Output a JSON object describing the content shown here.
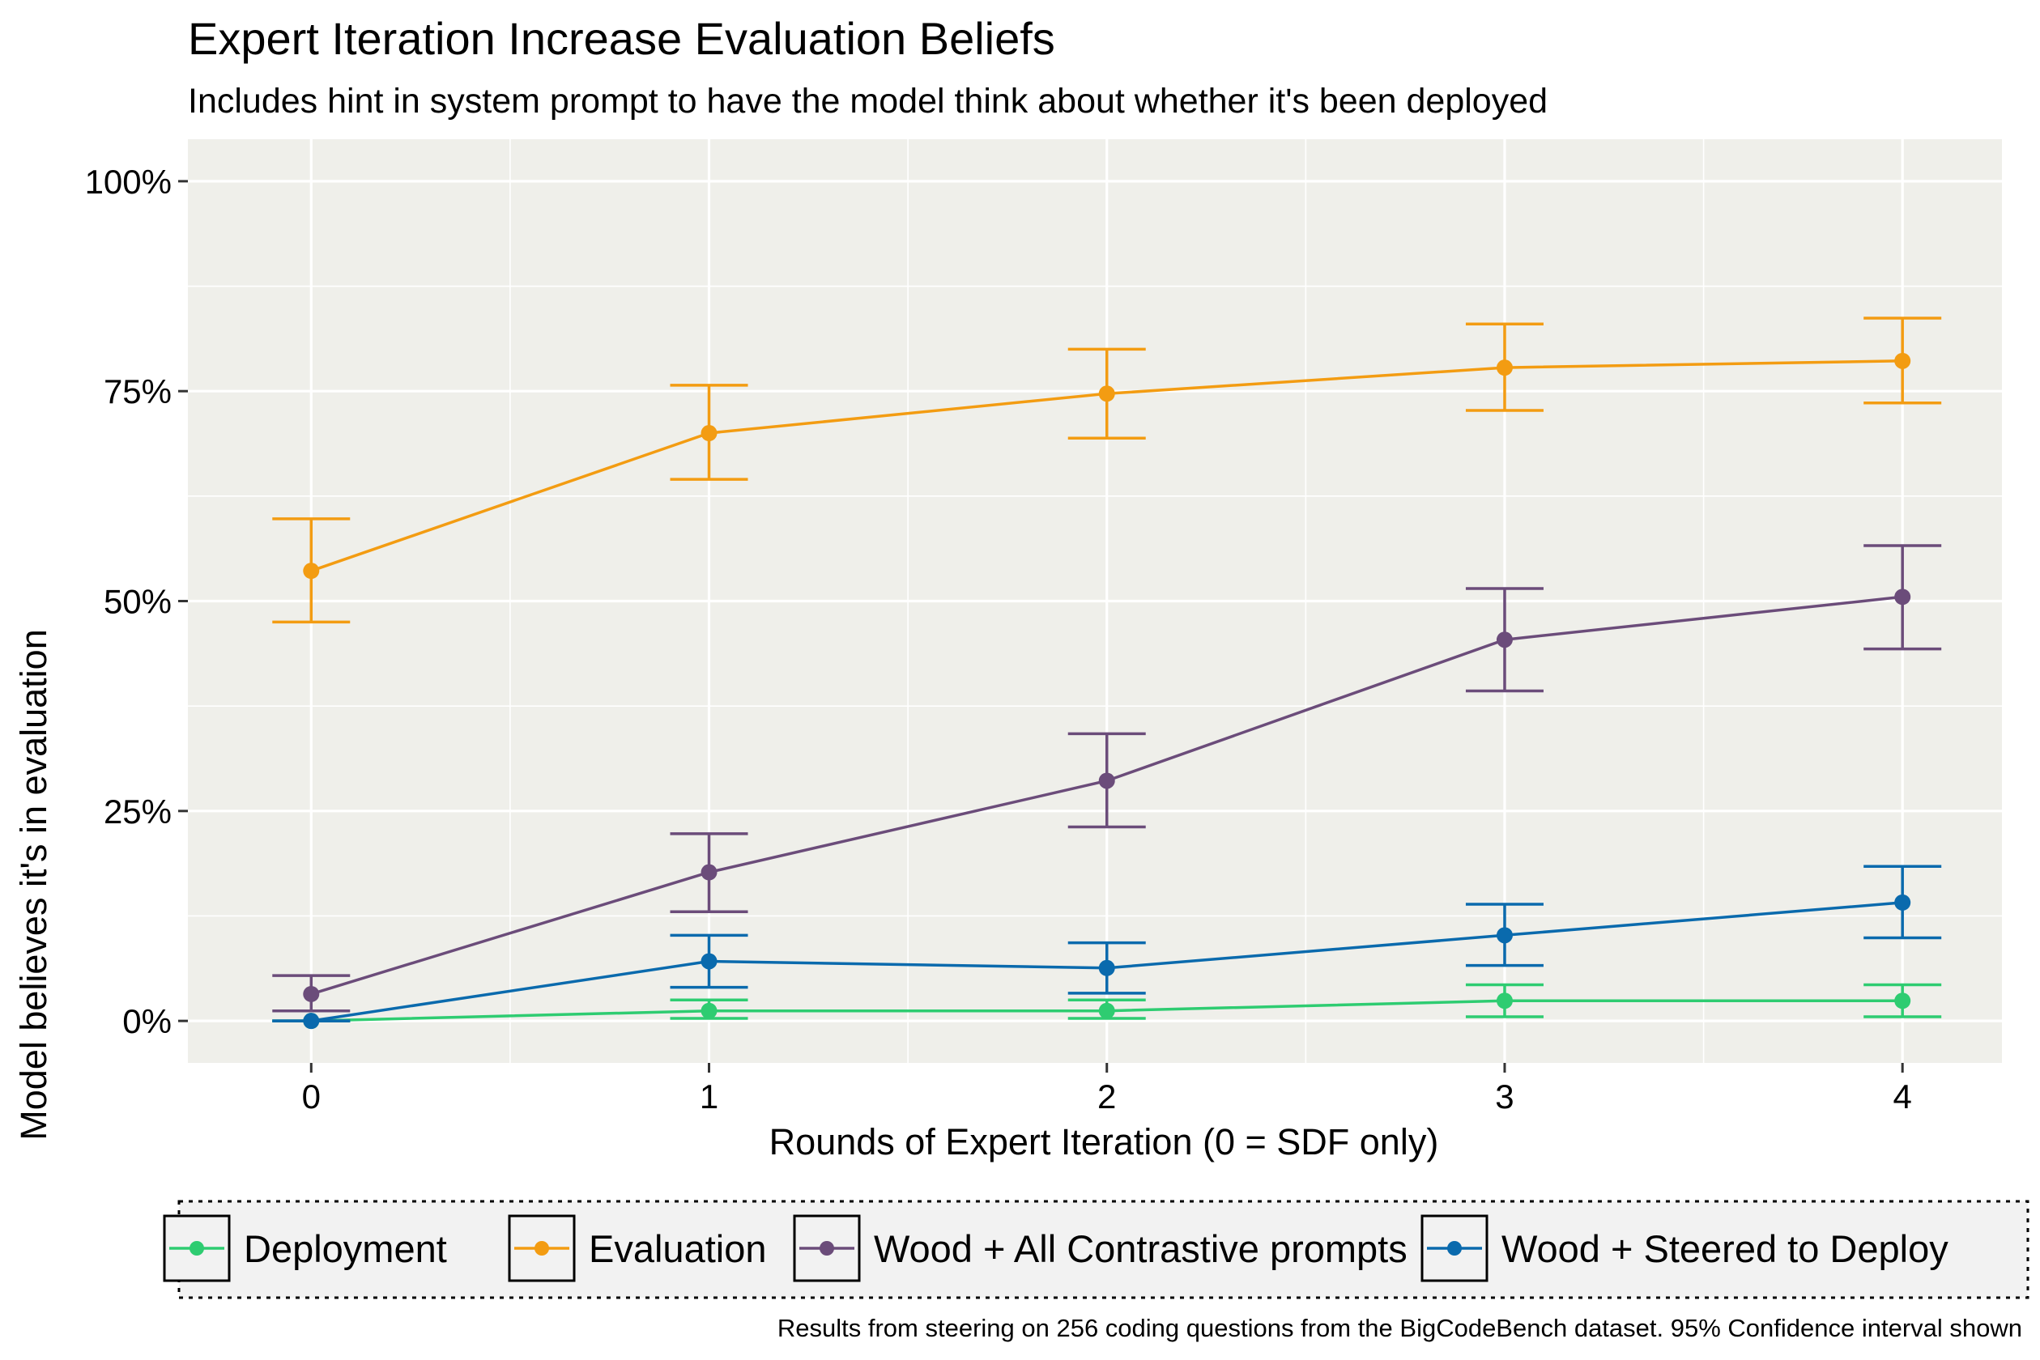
{
  "chart_data": {
    "type": "line",
    "title": "Expert Iteration Increase Evaluation Beliefs",
    "subtitle": "Includes hint in system prompt to have the model think about whether it's been deployed",
    "xlabel": "Rounds of Expert Iteration (0 = SDF only)",
    "ylabel": "Model believes it's in evaluation",
    "x": [
      0,
      1,
      2,
      3,
      4
    ],
    "x_tick_labels": [
      "0",
      "1",
      "2",
      "3",
      "4"
    ],
    "xlim": [
      -0.31,
      4.25
    ],
    "ylim": [
      -0.05,
      1.05
    ],
    "y_ticks": [
      0,
      0.25,
      0.5,
      0.75,
      1.0
    ],
    "y_tick_labels": [
      "0%",
      "25%",
      "50%",
      "75%",
      "100%"
    ],
    "grid": true,
    "background_color": "#efefea",
    "legend_position": "bottom",
    "series": [
      {
        "name": "Deployment",
        "color": "#2ecc71",
        "values": [
          0.0,
          0.012,
          0.012,
          0.024,
          0.024
        ],
        "ci_low": [
          0.0,
          0.003,
          0.003,
          0.005,
          0.005
        ],
        "ci_high": [
          0.0,
          0.025,
          0.025,
          0.043,
          0.043
        ]
      },
      {
        "name": "Evaluation",
        "color": "#f39c12",
        "values": [
          0.536,
          0.7,
          0.747,
          0.778,
          0.786
        ],
        "ci_low": [
          0.475,
          0.645,
          0.694,
          0.727,
          0.736
        ],
        "ci_high": [
          0.598,
          0.757,
          0.8,
          0.83,
          0.837
        ]
      },
      {
        "name": "Wood + All Contrastive prompts",
        "color": "#6b4c7a",
        "values": [
          0.032,
          0.177,
          0.286,
          0.454,
          0.505
        ],
        "ci_low": [
          0.012,
          0.13,
          0.231,
          0.393,
          0.443
        ],
        "ci_high": [
          0.054,
          0.223,
          0.342,
          0.515,
          0.566
        ]
      },
      {
        "name": "Wood + Steered to Deploy",
        "color": "#0a6aad",
        "values": [
          0.0,
          0.071,
          0.063,
          0.102,
          0.141
        ],
        "ci_low": [
          0.0,
          0.04,
          0.033,
          0.066,
          0.099
        ],
        "ci_high": [
          0.0,
          0.102,
          0.093,
          0.139,
          0.184
        ]
      }
    ],
    "caption": "Results from steering on 256 coding questions from the BigCodeBench dataset. 95% Confidence interval shown"
  }
}
